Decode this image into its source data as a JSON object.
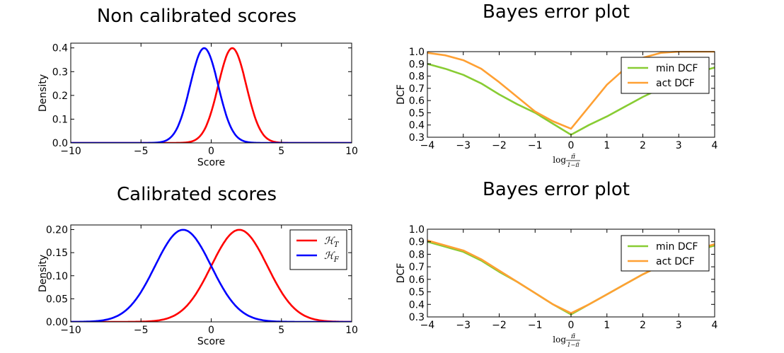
{
  "chart_data": [
    {
      "type": "line",
      "title": "Non calibrated scores",
      "xlabel": "Score",
      "ylabel": "Density",
      "xlim": [
        -10,
        10
      ],
      "ylim": [
        0,
        0.42
      ],
      "xticks": [
        -10,
        -5,
        0,
        5,
        10
      ],
      "xtick_labels": [
        "−10",
        "−5",
        "0",
        "5",
        "10"
      ],
      "yticks": [
        0,
        0.1,
        0.2,
        0.3,
        0.4
      ],
      "ytick_labels": [
        "0.0",
        "0.1",
        "0.2",
        "0.3",
        "0.4"
      ],
      "grid": false,
      "series": [
        {
          "kind": "gaussian",
          "mu": 1.5,
          "sigma": 1.0,
          "color": "#ff0000",
          "values": [
            0.0,
            0.004,
            0.054,
            0.242,
            0.399,
            0.242,
            0.054,
            0.004,
            0.0
          ]
        },
        {
          "kind": "gaussian",
          "mu": -0.5,
          "sigma": 1.0,
          "color": "#0000ff",
          "values": [
            0.0,
            0.004,
            0.054,
            0.242,
            0.399,
            0.242,
            0.054,
            0.004,
            0.0
          ]
        }
      ]
    },
    {
      "type": "line",
      "title": "Calibrated scores",
      "xlabel": "Score",
      "ylabel": "Density",
      "xlim": [
        -10,
        10
      ],
      "ylim": [
        0,
        0.21
      ],
      "xticks": [
        -10,
        -5,
        0,
        5,
        10
      ],
      "xtick_labels": [
        "−10",
        "−5",
        "0",
        "5",
        "10"
      ],
      "yticks": [
        0,
        0.05,
        0.1,
        0.15,
        0.2
      ],
      "ytick_labels": [
        "0.00",
        "0.05",
        "0.10",
        "0.15",
        "0.20"
      ],
      "grid": false,
      "legend": "top-right",
      "series": [
        {
          "name": "ℋ",
          "sub": "T",
          "kind": "gaussian",
          "mu": 2.0,
          "sigma": 2.0,
          "color": "#ff0000"
        },
        {
          "name": "ℋ",
          "sub": "F",
          "kind": "gaussian",
          "mu": -2.0,
          "sigma": 2.0,
          "color": "#0000ff"
        }
      ]
    },
    {
      "type": "line",
      "title": "Bayes error plot",
      "xlabel": "log",
      "xlabel_frac_num": "π̃",
      "xlabel_frac_den": "1−π̃",
      "ylabel": "DCF",
      "xlim": [
        -4,
        4
      ],
      "ylim": [
        0.3,
        1.0
      ],
      "xticks": [
        -4,
        -3,
        -2,
        -1,
        0,
        1,
        2,
        3,
        4
      ],
      "xtick_labels": [
        "−4",
        "−3",
        "−2",
        "−1",
        "0",
        "1",
        "2",
        "3",
        "4"
      ],
      "yticks": [
        0.3,
        0.4,
        0.5,
        0.6,
        0.7,
        0.8,
        0.9,
        1.0
      ],
      "ytick_labels": [
        "0.3",
        "0.4",
        "0.5",
        "0.6",
        "0.7",
        "0.8",
        "0.9",
        "1.0"
      ],
      "grid": false,
      "legend": "top-right",
      "series": [
        {
          "name": "min DCF",
          "color": "#88cc33",
          "x": [
            -4,
            -3.5,
            -3,
            -2.5,
            -2,
            -1.5,
            -1,
            -0.5,
            0,
            0.5,
            1,
            1.5,
            2,
            2.5,
            3,
            3.5,
            4
          ],
          "y": [
            0.9,
            0.86,
            0.81,
            0.74,
            0.65,
            0.57,
            0.5,
            0.41,
            0.32,
            0.4,
            0.47,
            0.55,
            0.63,
            0.7,
            0.77,
            0.83,
            0.87
          ]
        },
        {
          "name": "act DCF",
          "color": "#ffa033",
          "x": [
            -4,
            -3.5,
            -3,
            -2.5,
            -2,
            -1.5,
            -1,
            -0.5,
            0,
            0.5,
            1,
            1.5,
            2,
            2.5,
            3,
            3.5,
            4
          ],
          "y": [
            0.99,
            0.97,
            0.93,
            0.86,
            0.75,
            0.63,
            0.51,
            0.43,
            0.37,
            0.55,
            0.73,
            0.86,
            0.95,
            0.99,
            1.0,
            1.0,
            1.0
          ]
        }
      ]
    },
    {
      "type": "line",
      "title": "Bayes error plot",
      "xlabel": "log",
      "xlabel_frac_num": "π̃",
      "xlabel_frac_den": "1−π̃",
      "ylabel": "DCF",
      "xlim": [
        -4,
        4
      ],
      "ylim": [
        0.3,
        1.0
      ],
      "xticks": [
        -4,
        -3,
        -2,
        -1,
        0,
        1,
        2,
        3,
        4
      ],
      "xtick_labels": [
        "−4",
        "−3",
        "−2",
        "−1",
        "0",
        "1",
        "2",
        "3",
        "4"
      ],
      "yticks": [
        0.3,
        0.4,
        0.5,
        0.6,
        0.7,
        0.8,
        0.9,
        1.0
      ],
      "ytick_labels": [
        "0.3",
        "0.4",
        "0.5",
        "0.6",
        "0.7",
        "0.8",
        "0.9",
        "1.0"
      ],
      "grid": false,
      "legend": "top-right",
      "series": [
        {
          "name": "min DCF",
          "color": "#88cc33",
          "x": [
            -4,
            -3.5,
            -3,
            -2.5,
            -2,
            -1.5,
            -1,
            -0.5,
            0,
            0.5,
            1,
            1.5,
            2,
            2.5,
            3,
            3.5,
            4
          ],
          "y": [
            0.9,
            0.86,
            0.82,
            0.75,
            0.66,
            0.58,
            0.49,
            0.4,
            0.32,
            0.4,
            0.48,
            0.56,
            0.64,
            0.71,
            0.78,
            0.83,
            0.87
          ]
        },
        {
          "name": "act DCF",
          "color": "#ffa033",
          "x": [
            -4,
            -3.5,
            -3,
            -2.5,
            -2,
            -1.5,
            -1,
            -0.5,
            0,
            0.5,
            1,
            1.5,
            2,
            2.5,
            3,
            3.5,
            4
          ],
          "y": [
            0.91,
            0.87,
            0.83,
            0.76,
            0.67,
            0.58,
            0.49,
            0.4,
            0.33,
            0.4,
            0.48,
            0.56,
            0.64,
            0.71,
            0.78,
            0.84,
            0.88
          ]
        }
      ]
    }
  ]
}
